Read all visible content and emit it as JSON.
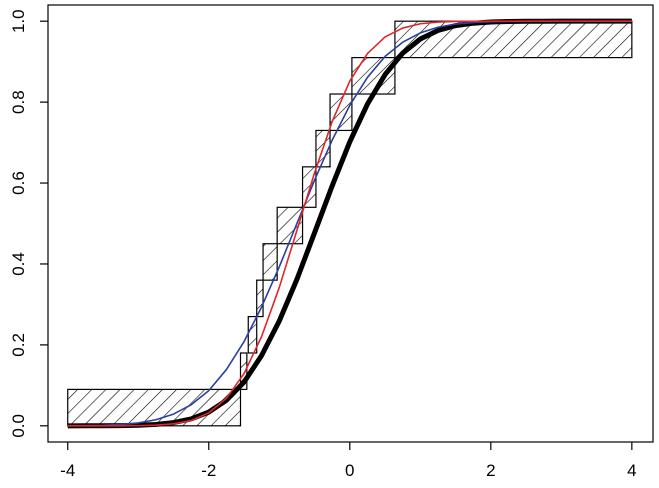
{
  "chart_data": {
    "type": "line",
    "x": [
      -4,
      -3.75,
      -3.5,
      -3.25,
      -3,
      -2.75,
      -2.5,
      -2.25,
      -2,
      -1.75,
      -1.5,
      -1.25,
      -1,
      -0.75,
      -0.5,
      -0.25,
      0,
      0.25,
      0.5,
      0.75,
      1,
      1.25,
      1.5,
      1.75,
      2,
      2.25,
      2.5,
      2.75,
      3,
      3.25,
      3.5,
      3.75,
      4
    ],
    "series": [
      {
        "color": "#000000",
        "width": 5,
        "values": [
          0,
          0.0001,
          0.0002,
          0.0005,
          0.0013,
          0.0034,
          0.008,
          0.017,
          0.034,
          0.063,
          0.108,
          0.174,
          0.259,
          0.362,
          0.477,
          0.593,
          0.702,
          0.795,
          0.868,
          0.921,
          0.956,
          0.977,
          0.989,
          0.995,
          0.998,
          0.9993,
          0.9997,
          0.9999,
          1,
          1,
          1,
          1,
          1
        ]
      },
      {
        "color": "#2b3fa0",
        "width": 1.6,
        "values": [
          0.0002,
          0.0006,
          0.0014,
          0.0033,
          0.0072,
          0.015,
          0.029,
          0.052,
          0.087,
          0.139,
          0.208,
          0.294,
          0.393,
          0.5,
          0.607,
          0.706,
          0.792,
          0.861,
          0.913,
          0.948,
          0.971,
          0.985,
          0.993,
          0.9967,
          0.9986,
          0.9994,
          0.9998,
          0.9999,
          1,
          1,
          1,
          1,
          1
        ]
      },
      {
        "color": "#e0262a",
        "width": 1.6,
        "values": [
          0,
          0,
          0,
          0.0001,
          0.0005,
          0.0016,
          0.005,
          0.013,
          0.032,
          0.068,
          0.129,
          0.221,
          0.342,
          0.483,
          0.625,
          0.752,
          0.852,
          0.92,
          0.961,
          0.983,
          0.9937,
          0.9979,
          0.9994,
          0.9998,
          1,
          1,
          1,
          1,
          1,
          1,
          1,
          1,
          1
        ]
      }
    ],
    "bands": [
      {
        "x": [
          -4,
          -1.55
        ],
        "lower": 0,
        "upper": 0.09
      },
      {
        "x": [
          -1.55,
          -1.46
        ],
        "lower": 0.09,
        "upper": 0.18
      },
      {
        "x": [
          -1.44,
          -1.32
        ],
        "lower": 0.18,
        "upper": 0.27
      },
      {
        "x": [
          -1.32,
          -1.23
        ],
        "lower": 0.27,
        "upper": 0.36
      },
      {
        "x": [
          -1.23,
          -1.03
        ],
        "lower": 0.36,
        "upper": 0.45
      },
      {
        "x": [
          -1.03,
          -0.67
        ],
        "lower": 0.45,
        "upper": 0.54
      },
      {
        "x": [
          -0.67,
          -0.48
        ],
        "lower": 0.54,
        "upper": 0.64
      },
      {
        "x": [
          -0.48,
          -0.28
        ],
        "lower": 0.64,
        "upper": 0.73
      },
      {
        "x": [
          -0.28,
          0.03
        ],
        "lower": 0.73,
        "upper": 0.82
      },
      {
        "x": [
          0.03,
          0.64
        ],
        "lower": 0.82,
        "upper": 0.91
      },
      {
        "x": [
          0.64,
          4
        ],
        "lower": 0.91,
        "upper": 1
      }
    ],
    "xlim": [
      -4.28,
      4.3
    ],
    "ylim": [
      -0.04,
      1.04
    ],
    "xticks": [
      -4,
      -2,
      0,
      2,
      4
    ],
    "yticks": [
      {
        "value": 0,
        "label": "0.0"
      },
      {
        "value": 0.2,
        "label": "0.2"
      },
      {
        "value": 0.4,
        "label": "0.4"
      },
      {
        "value": 0.6,
        "label": "0.6"
      },
      {
        "value": 0.8,
        "label": "0.8"
      },
      {
        "value": 1,
        "label": "1.0"
      }
    ]
  }
}
